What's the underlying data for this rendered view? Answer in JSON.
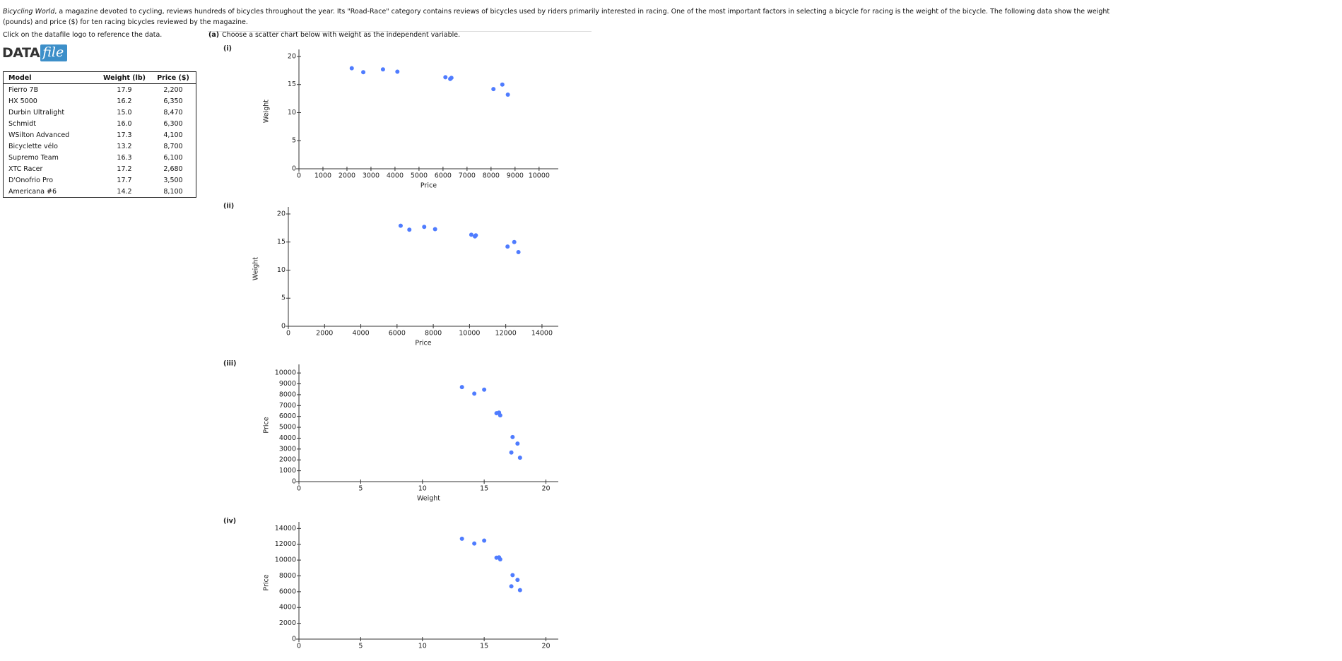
{
  "intro": {
    "italic": "Bicycling World",
    "text": ", a magazine devoted to cycling, reviews hundreds of bicycles throughout the year. Its \"Road-Race\" category contains reviews of bicycles used by riders primarily interested in racing. One of the most important factors in selecting a bicycle for racing is the weight of the bicycle. The following data show the weight (pounds) and price ($) for ten racing bicycles reviewed by the magazine."
  },
  "instruction": "Click on the datafile logo to reference the data.",
  "logo": {
    "data": "DATA",
    "file": "file"
  },
  "table": {
    "headers": [
      "Model",
      "Weight (lb)",
      "Price ($)"
    ],
    "rows": [
      [
        "Fierro 7B",
        "17.9",
        "2,200"
      ],
      [
        "HX 5000",
        "16.2",
        "6,350"
      ],
      [
        "Durbin Ultralight",
        "15.0",
        "8,470"
      ],
      [
        "Schmidt",
        "16.0",
        "6,300"
      ],
      [
        "WSilton Advanced",
        "17.3",
        "4,100"
      ],
      [
        "Bicyclette vélo",
        "13.2",
        "8,700"
      ],
      [
        "Supremo Team",
        "16.3",
        "6,100"
      ],
      [
        "XTC Racer",
        "17.2",
        "2,680"
      ],
      [
        "D'Onofrio Pro",
        "17.7",
        "3,500"
      ],
      [
        "Americana #6",
        "14.2",
        "8,100"
      ]
    ]
  },
  "question": {
    "label": "(a)",
    "text": "Choose a scatter chart below with weight as the independent variable."
  },
  "chart_data": [
    {
      "type": "scatter",
      "label": "(i)",
      "x_label": "Price",
      "y_label": "Weight",
      "color": "#4f7cff",
      "x": [
        2200,
        6350,
        8470,
        6300,
        4100,
        8700,
        6100,
        2680,
        3500,
        8100
      ],
      "values": [
        17.9,
        16.2,
        15.0,
        16.0,
        17.3,
        13.2,
        16.3,
        17.2,
        17.7,
        14.2
      ],
      "xlim": [
        0,
        10800
      ],
      "xticks": [
        0,
        1000,
        2000,
        3000,
        4000,
        5000,
        6000,
        7000,
        8000,
        9000,
        10000
      ],
      "ylim": [
        0,
        20.5
      ],
      "yticks": [
        0,
        5,
        10,
        15,
        20
      ]
    },
    {
      "type": "scatter",
      "label": "(ii)",
      "x_label": "Price",
      "y_label": "Weight",
      "color": "#4f7cff",
      "x": [
        6200,
        10350,
        12470,
        10300,
        8100,
        12700,
        10100,
        6680,
        7500,
        12100
      ],
      "values": [
        17.9,
        16.2,
        15.0,
        16.0,
        17.3,
        13.2,
        16.3,
        17.2,
        17.7,
        14.2
      ],
      "xlim": [
        0,
        14900
      ],
      "xticks": [
        0,
        2000,
        4000,
        6000,
        8000,
        10000,
        12000,
        14000
      ],
      "ylim": [
        0,
        20.5
      ],
      "yticks": [
        0,
        5,
        10,
        15,
        20
      ]
    },
    {
      "type": "scatter",
      "label": "(iii)",
      "x_label": "Weight",
      "y_label": "Price",
      "color": "#4f7cff",
      "x": [
        17.9,
        16.2,
        15.0,
        16.0,
        17.3,
        13.2,
        16.3,
        17.2,
        17.7,
        14.2
      ],
      "values": [
        2200,
        6350,
        8470,
        6300,
        4100,
        8700,
        6100,
        2680,
        3500,
        8100
      ],
      "xlim": [
        0,
        21
      ],
      "xticks": [
        0,
        5,
        10,
        15,
        20
      ],
      "ylim": [
        0,
        10400
      ],
      "yticks": [
        0,
        1000,
        2000,
        3000,
        4000,
        5000,
        6000,
        7000,
        8000,
        9000,
        10000
      ]
    },
    {
      "type": "scatter",
      "label": "(iv)",
      "y_label": "Price",
      "color": "#4f7cff",
      "x": [
        17.9,
        16.2,
        15.0,
        16.0,
        17.3,
        13.2,
        16.3,
        17.2,
        17.7,
        14.2
      ],
      "values": [
        6200,
        10350,
        12470,
        10300,
        8100,
        12700,
        10100,
        6680,
        7500,
        12100
      ],
      "xlim": [
        0,
        21
      ],
      "xticks": [
        0,
        5,
        10,
        15,
        20
      ],
      "ylim": [
        0,
        14300
      ],
      "yticks": [
        0,
        2000,
        4000,
        6000,
        8000,
        10000,
        12000,
        14000
      ]
    }
  ]
}
